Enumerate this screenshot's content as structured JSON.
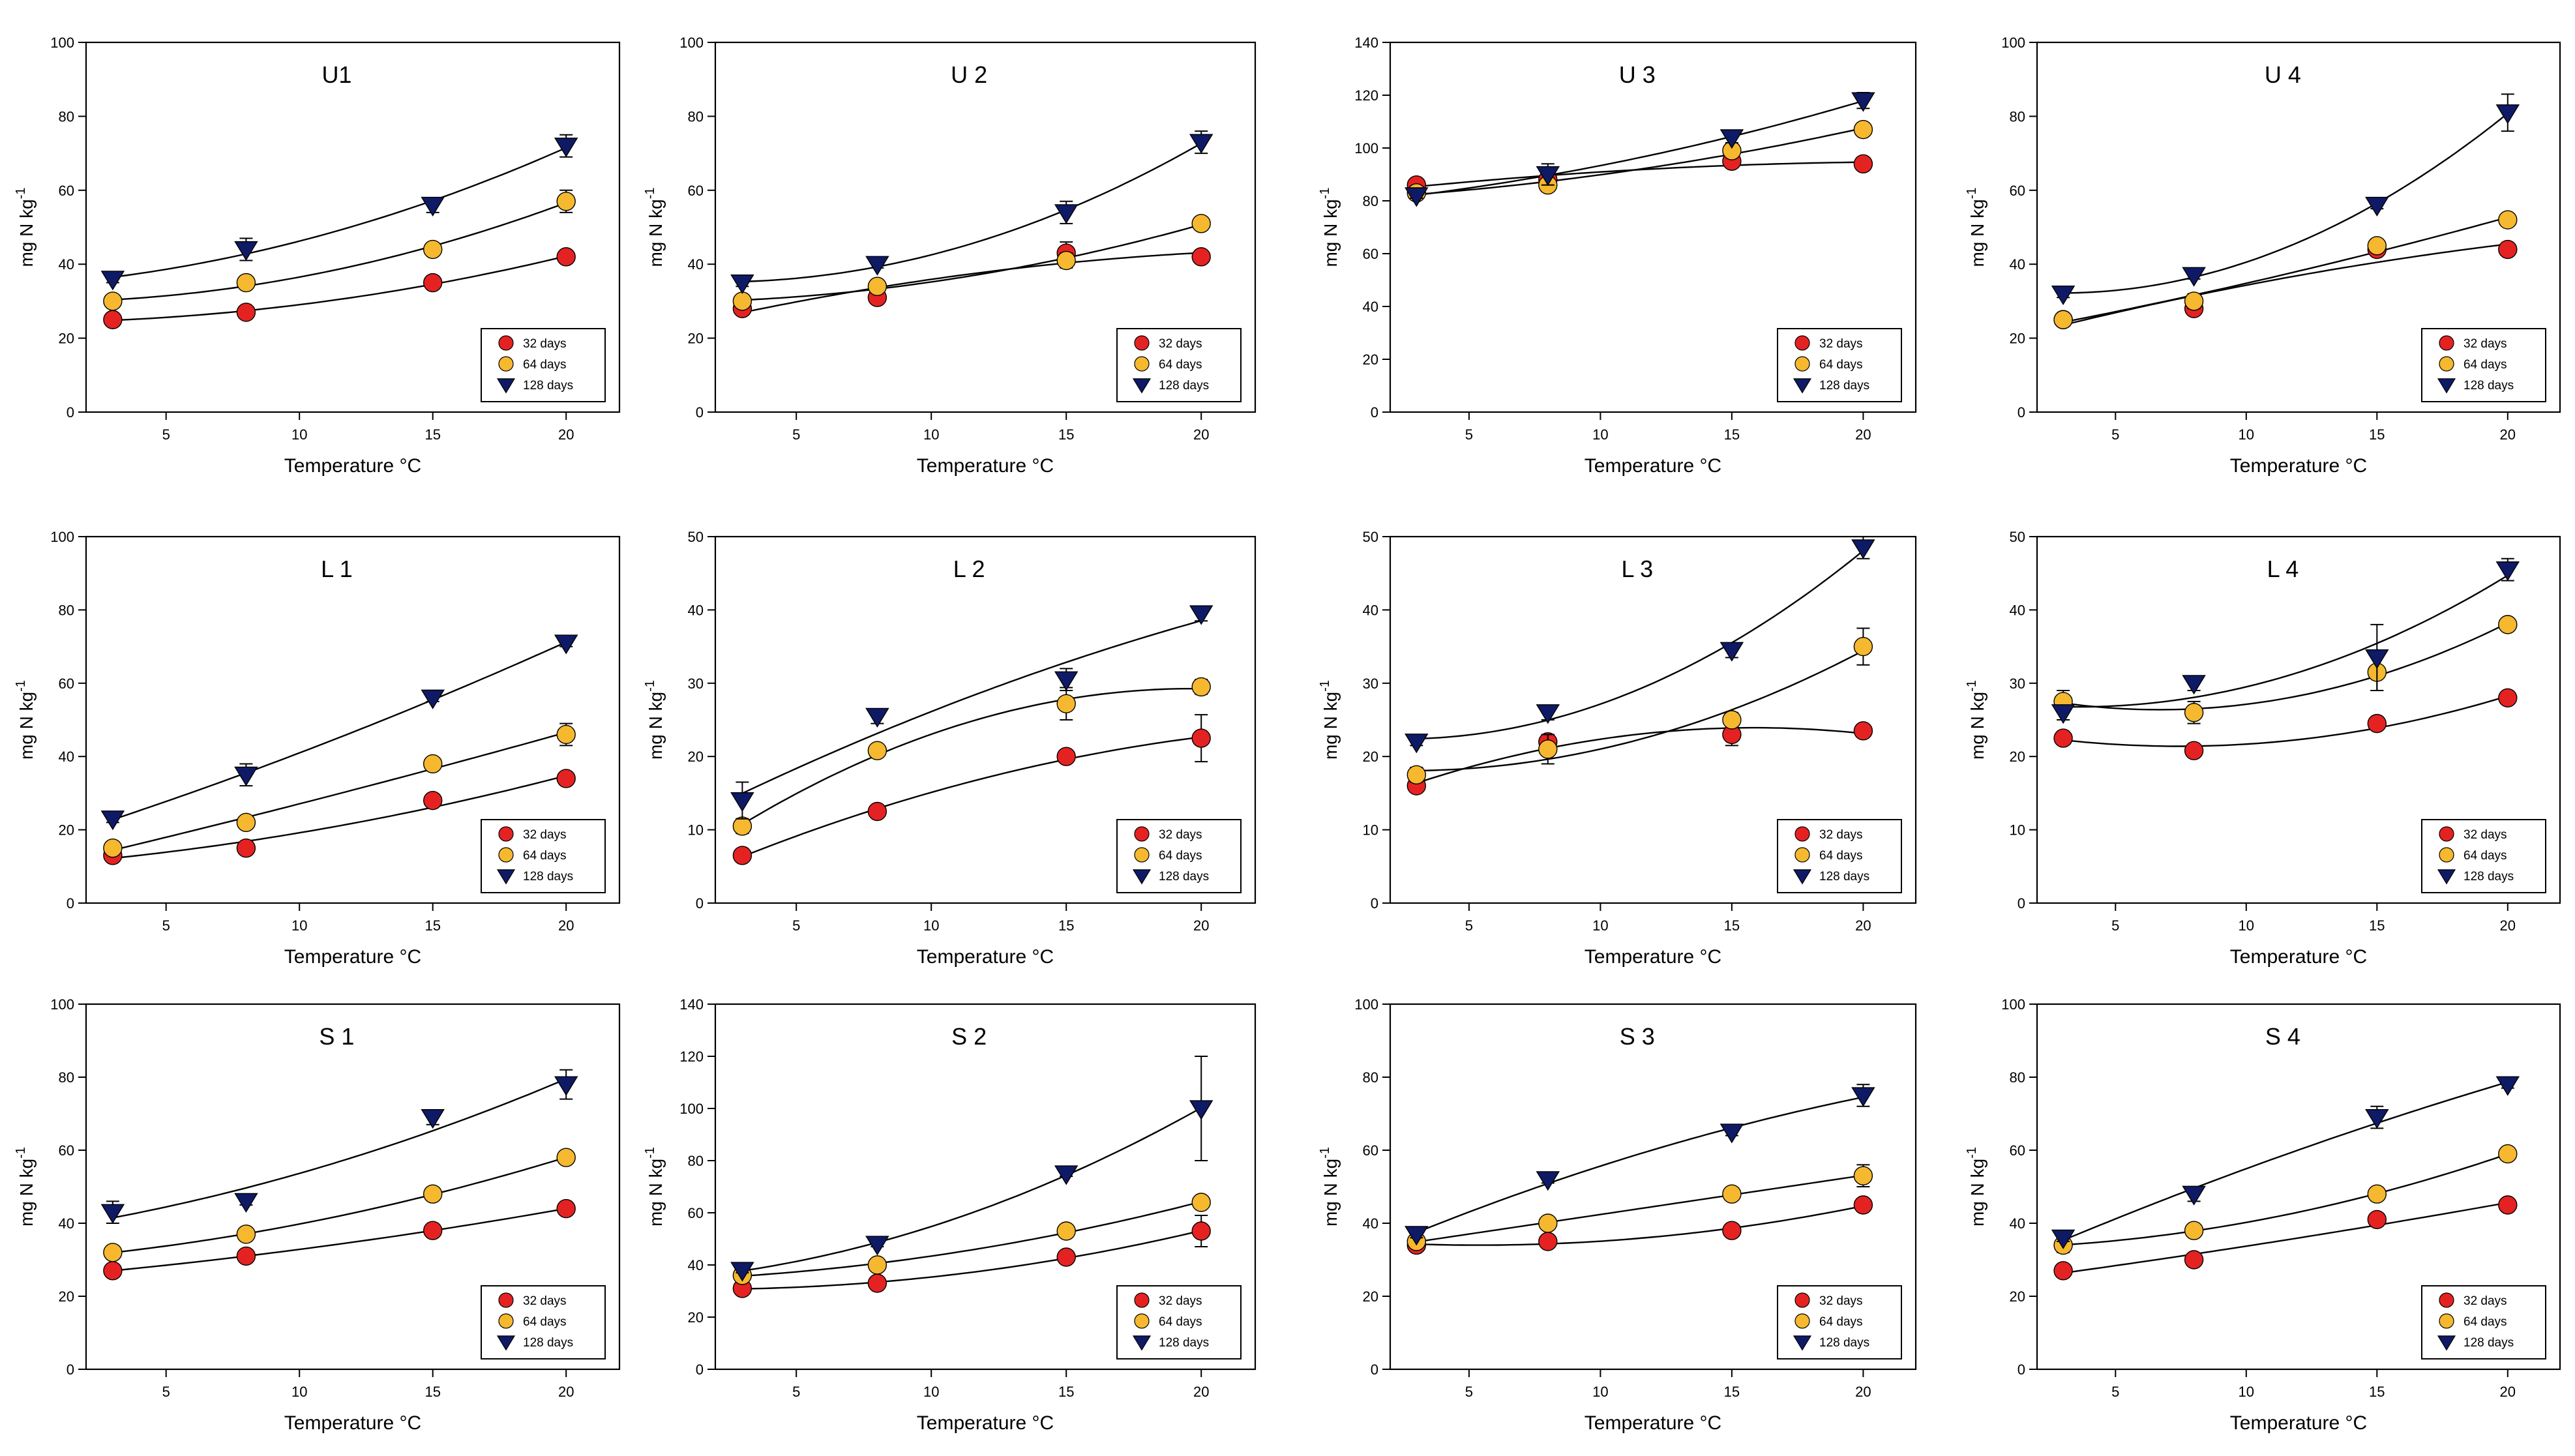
{
  "figure": {
    "xlabel": "Temperature °C"
  },
  "colors": {
    "32 days": "#e52222",
    "64 days": "#f5b82e",
    "128 days": "#0f1a66",
    "axis": "#000000"
  },
  "chart_data": [
    {
      "title": "U1",
      "type": "scatter",
      "ylabel": "mg N kg-1",
      "xlabel": "Temperature °C",
      "x": [
        3,
        8,
        15,
        20
      ],
      "xticks": [
        5,
        10,
        15,
        20
      ],
      "xlim": [
        2,
        22
      ],
      "ylim": [
        0,
        100
      ],
      "yticks": [
        0,
        20,
        40,
        60,
        80,
        100
      ],
      "legend": "bottom-right",
      "series": [
        {
          "name": "32 days",
          "marker": "circle",
          "values": [
            25,
            27,
            35,
            42
          ],
          "err": [
            1,
            1,
            1,
            1
          ]
        },
        {
          "name": "64 days",
          "marker": "circle",
          "values": [
            30,
            35,
            44,
            57
          ],
          "err": [
            1,
            1,
            1,
            3
          ]
        },
        {
          "name": "128 days",
          "marker": "triangle",
          "values": [
            36,
            44,
            56,
            72
          ],
          "err": [
            1,
            3,
            2,
            3
          ]
        }
      ]
    },
    {
      "title": "U 2",
      "type": "scatter",
      "ylabel": "mg N kg-1",
      "xlabel": "Temperature °C",
      "x": [
        3,
        8,
        15,
        20
      ],
      "xticks": [
        5,
        10,
        15,
        20
      ],
      "xlim": [
        2,
        22
      ],
      "ylim": [
        0,
        100
      ],
      "yticks": [
        0,
        20,
        40,
        60,
        80,
        100
      ],
      "legend": "bottom-right",
      "series": [
        {
          "name": "32 days",
          "marker": "circle",
          "values": [
            28,
            31,
            43,
            42
          ],
          "err": [
            1,
            1,
            3,
            1
          ]
        },
        {
          "name": "64 days",
          "marker": "circle",
          "values": [
            30,
            34,
            41,
            51
          ],
          "err": [
            1,
            1,
            2,
            1
          ]
        },
        {
          "name": "128 days",
          "marker": "triangle",
          "values": [
            35,
            40,
            54,
            73
          ],
          "err": [
            1,
            1,
            3,
            3
          ]
        }
      ]
    },
    {
      "title": "U 3",
      "type": "scatter",
      "ylabel": "mg N kg-1",
      "xlabel": "Temperature °C",
      "x": [
        3,
        8,
        15,
        20
      ],
      "xticks": [
        5,
        10,
        15,
        20
      ],
      "xlim": [
        2,
        22
      ],
      "ylim": [
        0,
        140
      ],
      "yticks": [
        0,
        20,
        40,
        60,
        80,
        100,
        120,
        140
      ],
      "legend": "bottom-right",
      "series": [
        {
          "name": "32 days",
          "marker": "circle",
          "values": [
            86,
            88,
            95,
            94
          ],
          "err": [
            1,
            1,
            1,
            1
          ]
        },
        {
          "name": "64 days",
          "marker": "circle",
          "values": [
            83,
            86,
            99,
            107
          ],
          "err": [
            1,
            2,
            2,
            2
          ]
        },
        {
          "name": "128 days",
          "marker": "triangle",
          "values": [
            82,
            90,
            104,
            118
          ],
          "err": [
            1,
            4,
            2,
            3
          ]
        }
      ]
    },
    {
      "title": "U 4",
      "type": "scatter",
      "ylabel": "mg N kg-1",
      "xlabel": "Temperature °C",
      "x": [
        3,
        8,
        15,
        20
      ],
      "xticks": [
        5,
        10,
        15,
        20
      ],
      "xlim": [
        2,
        22
      ],
      "ylim": [
        0,
        100
      ],
      "yticks": [
        0,
        20,
        40,
        60,
        80,
        100
      ],
      "legend": "bottom-right",
      "series": [
        {
          "name": "32 days",
          "marker": "circle",
          "values": [
            25,
            28,
            44,
            44
          ],
          "err": [
            1,
            1,
            1,
            1
          ]
        },
        {
          "name": "64 days",
          "marker": "circle",
          "values": [
            25,
            30,
            45,
            52
          ],
          "err": [
            1,
            2,
            1,
            1
          ]
        },
        {
          "name": "128 days",
          "marker": "triangle",
          "values": [
            32,
            37,
            56,
            81
          ],
          "err": [
            1,
            1,
            1,
            5
          ]
        }
      ]
    },
    {
      "title": "L 1",
      "type": "scatter",
      "ylabel": "mg N kg-1",
      "xlabel": "Temperature °C",
      "x": [
        3,
        8,
        15,
        20
      ],
      "xticks": [
        5,
        10,
        15,
        20
      ],
      "xlim": [
        2,
        22
      ],
      "ylim": [
        0,
        100
      ],
      "yticks": [
        0,
        20,
        40,
        60,
        80,
        100
      ],
      "legend": "bottom-right",
      "series": [
        {
          "name": "32 days",
          "marker": "circle",
          "values": [
            13,
            15,
            28,
            34
          ],
          "err": [
            1,
            1,
            1,
            1
          ]
        },
        {
          "name": "64 days",
          "marker": "circle",
          "values": [
            15,
            22,
            38,
            46
          ],
          "err": [
            1,
            1,
            1,
            3
          ]
        },
        {
          "name": "128 days",
          "marker": "triangle",
          "values": [
            23,
            35,
            56,
            71
          ],
          "err": [
            1,
            3,
            1,
            1
          ]
        }
      ]
    },
    {
      "title": "L 2",
      "type": "scatter",
      "ylabel": "mg N kg-1",
      "xlabel": "Temperature °C",
      "x": [
        3,
        8,
        15,
        20
      ],
      "xticks": [
        5,
        10,
        15,
        20
      ],
      "xlim": [
        2,
        22
      ],
      "ylim": [
        0,
        50
      ],
      "yticks": [
        0,
        10,
        20,
        30,
        40,
        50
      ],
      "legend": "bottom-right",
      "series": [
        {
          "name": "32 days",
          "marker": "circle",
          "values": [
            6.5,
            12.5,
            20,
            22.5
          ],
          "err": [
            0.5,
            0.5,
            0.8,
            3.2
          ]
        },
        {
          "name": "64 days",
          "marker": "circle",
          "values": [
            10.5,
            20.8,
            27.2,
            29.5
          ],
          "err": [
            1,
            0.8,
            2.2,
            1
          ]
        },
        {
          "name": "128 days",
          "marker": "triangle",
          "values": [
            14,
            25.5,
            30.5,
            39.5
          ],
          "err": [
            2.5,
            1,
            1.5,
            1
          ]
        }
      ]
    },
    {
      "title": "L 3",
      "type": "scatter",
      "ylabel": "mg N kg-1",
      "xlabel": "Temperature °C",
      "x": [
        3,
        8,
        15,
        20
      ],
      "xticks": [
        5,
        10,
        15,
        20
      ],
      "xlim": [
        2,
        22
      ],
      "ylim": [
        0,
        50
      ],
      "yticks": [
        0,
        10,
        20,
        30,
        40,
        50
      ],
      "legend": "bottom-right",
      "series": [
        {
          "name": "32 days",
          "marker": "circle",
          "values": [
            16,
            22,
            23,
            23.5
          ],
          "err": [
            0.5,
            1,
            1.5,
            0.5
          ]
        },
        {
          "name": "64 days",
          "marker": "circle",
          "values": [
            17.5,
            21,
            25,
            35
          ],
          "err": [
            1,
            2,
            1,
            2.5
          ]
        },
        {
          "name": "128 days",
          "marker": "triangle",
          "values": [
            22,
            26,
            34.5,
            48.5
          ],
          "err": [
            0.5,
            1,
            1,
            1.5
          ]
        }
      ]
    },
    {
      "title": "L 4",
      "type": "scatter",
      "ylabel": "mg N kg-1",
      "xlabel": "Temperature °C",
      "x": [
        3,
        8,
        15,
        20
      ],
      "xticks": [
        5,
        10,
        15,
        20
      ],
      "xlim": [
        2,
        22
      ],
      "ylim": [
        0,
        50
      ],
      "yticks": [
        0,
        10,
        20,
        30,
        40,
        50
      ],
      "legend": "bottom-right",
      "series": [
        {
          "name": "32 days",
          "marker": "circle",
          "values": [
            22.5,
            20.8,
            24.5,
            28
          ],
          "err": [
            0.5,
            0.5,
            0.5,
            0.5
          ]
        },
        {
          "name": "64 days",
          "marker": "circle",
          "values": [
            27.5,
            26,
            31.5,
            38
          ],
          "err": [
            1.5,
            1.5,
            2.5,
            0.5
          ]
        },
        {
          "name": "128 days",
          "marker": "triangle",
          "values": [
            26,
            30,
            33.5,
            45.5
          ],
          "err": [
            1,
            1,
            4.5,
            1.5
          ]
        }
      ]
    },
    {
      "title": "S 1",
      "type": "scatter",
      "ylabel": "mg N kg-1",
      "xlabel": "Temperature °C",
      "x": [
        3,
        8,
        15,
        20
      ],
      "xticks": [
        5,
        10,
        15,
        20
      ],
      "xlim": [
        2,
        22
      ],
      "ylim": [
        0,
        100
      ],
      "yticks": [
        0,
        20,
        40,
        60,
        80,
        100
      ],
      "legend": "bottom-right",
      "series": [
        {
          "name": "32 days",
          "marker": "circle",
          "values": [
            27,
            31,
            38,
            44
          ],
          "err": [
            1,
            1,
            1,
            1
          ]
        },
        {
          "name": "64 days",
          "marker": "circle",
          "values": [
            32,
            37,
            48,
            58
          ],
          "err": [
            1,
            1,
            1,
            1
          ]
        },
        {
          "name": "128 days",
          "marker": "triangle",
          "values": [
            43,
            46,
            69,
            78
          ],
          "err": [
            3,
            1,
            2,
            4
          ]
        }
      ]
    },
    {
      "title": "S 2",
      "type": "scatter",
      "ylabel": "mg N kg-1",
      "xlabel": "Temperature °C",
      "x": [
        3,
        8,
        15,
        20
      ],
      "xticks": [
        5,
        10,
        15,
        20
      ],
      "xlim": [
        2,
        22
      ],
      "ylim": [
        0,
        140
      ],
      "yticks": [
        0,
        20,
        40,
        60,
        80,
        100,
        120,
        140
      ],
      "legend": "bottom-right",
      "series": [
        {
          "name": "32 days",
          "marker": "circle",
          "values": [
            31,
            33,
            43,
            53
          ],
          "err": [
            1,
            1,
            1,
            6
          ]
        },
        {
          "name": "64 days",
          "marker": "circle",
          "values": [
            36,
            40,
            53,
            64
          ],
          "err": [
            1,
            1,
            2,
            2
          ]
        },
        {
          "name": "128 days",
          "marker": "triangle",
          "values": [
            38,
            48,
            75,
            100
          ],
          "err": [
            1,
            1,
            1,
            20
          ]
        }
      ]
    },
    {
      "title": "S 3",
      "type": "scatter",
      "ylabel": "mg N kg-1",
      "xlabel": "Temperature °C",
      "x": [
        3,
        8,
        15,
        20
      ],
      "xticks": [
        5,
        10,
        15,
        20
      ],
      "xlim": [
        2,
        22
      ],
      "ylim": [
        0,
        100
      ],
      "yticks": [
        0,
        20,
        40,
        60,
        80,
        100
      ],
      "legend": "bottom-right",
      "series": [
        {
          "name": "32 days",
          "marker": "circle",
          "values": [
            34,
            35,
            38,
            45
          ],
          "err": [
            1,
            1,
            1,
            1
          ]
        },
        {
          "name": "64 days",
          "marker": "circle",
          "values": [
            35,
            40,
            48,
            53
          ],
          "err": [
            1,
            1,
            1,
            3
          ]
        },
        {
          "name": "128 days",
          "marker": "triangle",
          "values": [
            37,
            52,
            65,
            75
          ],
          "err": [
            1,
            1,
            1,
            3
          ]
        }
      ]
    },
    {
      "title": "S 4",
      "type": "scatter",
      "ylabel": "mg N kg-1",
      "xlabel": "Temperature °C",
      "x": [
        3,
        8,
        15,
        20
      ],
      "xticks": [
        5,
        10,
        15,
        20
      ],
      "xlim": [
        2,
        22
      ],
      "ylim": [
        0,
        100
      ],
      "yticks": [
        0,
        20,
        40,
        60,
        80,
        100
      ],
      "legend": "bottom-right",
      "series": [
        {
          "name": "32 days",
          "marker": "circle",
          "values": [
            27,
            30,
            41,
            45
          ],
          "err": [
            1,
            1,
            1,
            1
          ]
        },
        {
          "name": "64 days",
          "marker": "circle",
          "values": [
            34,
            38,
            48,
            59
          ],
          "err": [
            2,
            1,
            1,
            1
          ]
        },
        {
          "name": "128 days",
          "marker": "triangle",
          "values": [
            36,
            48,
            69,
            78
          ],
          "err": [
            1,
            2,
            3,
            1
          ]
        }
      ]
    }
  ]
}
